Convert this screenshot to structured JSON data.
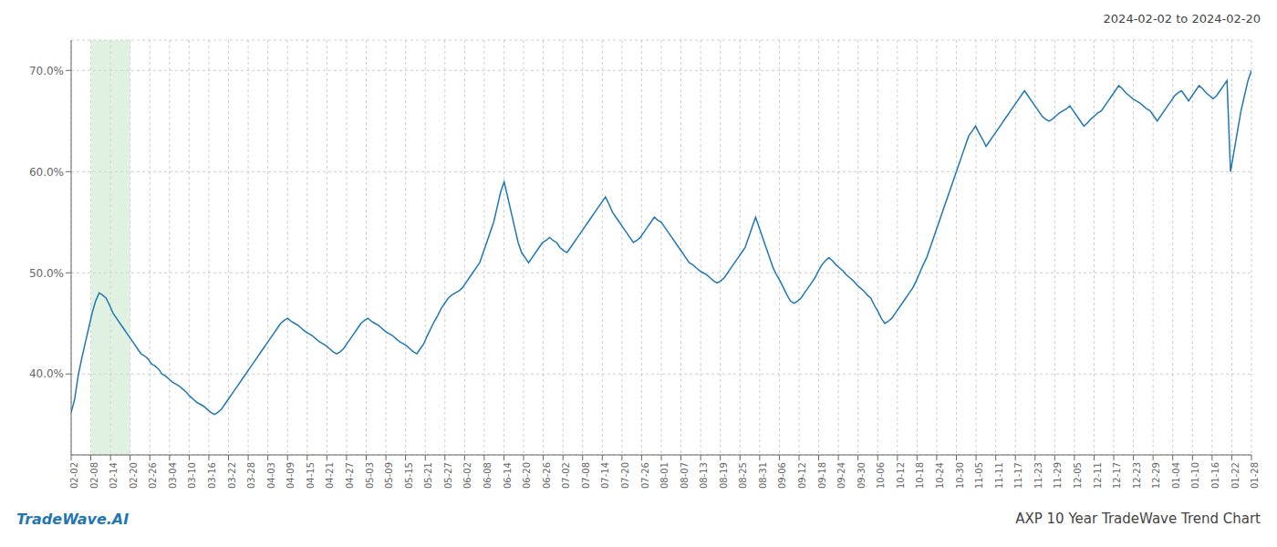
{
  "chart_data": {
    "type": "line",
    "title": "AXP 10 Year TradeWave Trend Chart",
    "subtitle": "2024-02-02 to 2024-02-20",
    "annotations": [
      {
        "text": "TradeWave.AI",
        "color": "#1f77b4"
      }
    ],
    "color": "#1f77b4",
    "grid": true,
    "xlim": [
      0,
      338
    ],
    "xticks": [
      {
        "value": 0,
        "label": "02-02"
      },
      {
        "value": 5.633,
        "label": "02-08"
      },
      {
        "value": 11.267,
        "label": "02-14"
      },
      {
        "value": 16.9,
        "label": "02-20"
      },
      {
        "value": 22.533,
        "label": "02-26"
      },
      {
        "value": 28.167,
        "label": "03-04"
      },
      {
        "value": 33.8,
        "label": "03-10"
      },
      {
        "value": 39.433,
        "label": "03-16"
      },
      {
        "value": 45.067,
        "label": "03-22"
      },
      {
        "value": 50.7,
        "label": "03-28"
      },
      {
        "value": 56.333,
        "label": "04-03"
      },
      {
        "value": 61.967,
        "label": "04-09"
      },
      {
        "value": 67.6,
        "label": "04-15"
      },
      {
        "value": 73.233,
        "label": "04-21"
      },
      {
        "value": 78.867,
        "label": "04-27"
      },
      {
        "value": 84.5,
        "label": "05-03"
      },
      {
        "value": 90.133,
        "label": "05-09"
      },
      {
        "value": 95.767,
        "label": "05-15"
      },
      {
        "value": 101.4,
        "label": "05-21"
      },
      {
        "value": 107.033,
        "label": "05-27"
      },
      {
        "value": 112.667,
        "label": "06-02"
      },
      {
        "value": 118.3,
        "label": "06-08"
      },
      {
        "value": 123.933,
        "label": "06-14"
      },
      {
        "value": 129.567,
        "label": "06-20"
      },
      {
        "value": 135.2,
        "label": "06-26"
      },
      {
        "value": 140.833,
        "label": "07-02"
      },
      {
        "value": 146.467,
        "label": "07-08"
      },
      {
        "value": 152.1,
        "label": "07-14"
      },
      {
        "value": 157.733,
        "label": "07-20"
      },
      {
        "value": 163.367,
        "label": "07-26"
      },
      {
        "value": 169,
        "label": "08-01"
      },
      {
        "value": 174.633,
        "label": "08-07"
      },
      {
        "value": 180.267,
        "label": "08-13"
      },
      {
        "value": 185.9,
        "label": "08-19"
      },
      {
        "value": 191.533,
        "label": "08-25"
      },
      {
        "value": 197.167,
        "label": "08-31"
      },
      {
        "value": 202.8,
        "label": "09-06"
      },
      {
        "value": 208.433,
        "label": "09-12"
      },
      {
        "value": 214.067,
        "label": "09-18"
      },
      {
        "value": 219.7,
        "label": "09-24"
      },
      {
        "value": 225.333,
        "label": "09-30"
      },
      {
        "value": 230.967,
        "label": "10-06"
      },
      {
        "value": 236.6,
        "label": "10-12"
      },
      {
        "value": 242.233,
        "label": "10-18"
      },
      {
        "value": 247.867,
        "label": "10-24"
      },
      {
        "value": 253.5,
        "label": "10-30"
      },
      {
        "value": 259.133,
        "label": "11-05"
      },
      {
        "value": 264.767,
        "label": "11-11"
      },
      {
        "value": 270.4,
        "label": "11-17"
      },
      {
        "value": 276.033,
        "label": "11-23"
      },
      {
        "value": 281.667,
        "label": "11-29"
      },
      {
        "value": 287.3,
        "label": "12-05"
      },
      {
        "value": 292.933,
        "label": "12-11"
      },
      {
        "value": 298.567,
        "label": "12-17"
      },
      {
        "value": 304.2,
        "label": "12-23"
      },
      {
        "value": 309.833,
        "label": "12-29"
      },
      {
        "value": 315.467,
        "label": "01-04"
      },
      {
        "value": 321.1,
        "label": "01-10"
      },
      {
        "value": 326.733,
        "label": "01-16"
      },
      {
        "value": 332.367,
        "label": "01-22"
      },
      {
        "value": 338,
        "label": "01-28"
      }
    ],
    "ylim": [
      32,
      73
    ],
    "yticks": [
      {
        "value": 40,
        "label": "40.0%"
      },
      {
        "value": 50,
        "label": "50.0%"
      },
      {
        "value": 60,
        "label": "60.0%"
      },
      {
        "value": 70,
        "label": "70.0%"
      }
    ],
    "highlight": {
      "from": "02-08",
      "to": "02-20",
      "color": "#c8e6c9"
    },
    "values": [
      36.2,
      37.5,
      39.8,
      41.5,
      43.0,
      44.5,
      46.0,
      47.2,
      48.0,
      47.8,
      47.5,
      46.8,
      46.0,
      45.5,
      45.0,
      44.5,
      44.0,
      43.5,
      43.0,
      42.5,
      42.0,
      41.8,
      41.5,
      41.0,
      40.8,
      40.5,
      40.0,
      39.8,
      39.5,
      39.2,
      39.0,
      38.8,
      38.5,
      38.2,
      37.8,
      37.5,
      37.2,
      37.0,
      36.8,
      36.5,
      36.2,
      36.0,
      36.2,
      36.5,
      37.0,
      37.5,
      38.0,
      38.5,
      39.0,
      39.5,
      40.0,
      40.5,
      41.0,
      41.5,
      42.0,
      42.5,
      43.0,
      43.5,
      44.0,
      44.5,
      45.0,
      45.3,
      45.5,
      45.2,
      45.0,
      44.8,
      44.5,
      44.2,
      44.0,
      43.8,
      43.5,
      43.2,
      43.0,
      42.8,
      42.5,
      42.2,
      42.0,
      42.2,
      42.5,
      43.0,
      43.5,
      44.0,
      44.5,
      45.0,
      45.3,
      45.5,
      45.2,
      45.0,
      44.8,
      44.5,
      44.2,
      44.0,
      43.8,
      43.5,
      43.2,
      43.0,
      42.8,
      42.5,
      42.2,
      42.0,
      42.5,
      43.0,
      43.8,
      44.5,
      45.2,
      45.8,
      46.5,
      47.0,
      47.5,
      47.8,
      48.0,
      48.2,
      48.5,
      49.0,
      49.5,
      50.0,
      50.5,
      51.0,
      52.0,
      53.0,
      54.0,
      55.0,
      56.5,
      58.0,
      59.0,
      57.5,
      56.0,
      54.5,
      53.0,
      52.0,
      51.5,
      51.0,
      51.5,
      52.0,
      52.5,
      53.0,
      53.2,
      53.5,
      53.2,
      53.0,
      52.5,
      52.2,
      52.0,
      52.5,
      53.0,
      53.5,
      54.0,
      54.5,
      55.0,
      55.5,
      56.0,
      56.5,
      57.0,
      57.5,
      56.8,
      56.0,
      55.5,
      55.0,
      54.5,
      54.0,
      53.5,
      53.0,
      53.2,
      53.5,
      54.0,
      54.5,
      55.0,
      55.5,
      55.2,
      55.0,
      54.5,
      54.0,
      53.5,
      53.0,
      52.5,
      52.0,
      51.5,
      51.0,
      50.8,
      50.5,
      50.2,
      50.0,
      49.8,
      49.5,
      49.2,
      49.0,
      49.2,
      49.5,
      50.0,
      50.5,
      51.0,
      51.5,
      52.0,
      52.5,
      53.5,
      54.5,
      55.5,
      54.5,
      53.5,
      52.5,
      51.5,
      50.5,
      49.8,
      49.2,
      48.5,
      47.8,
      47.2,
      47.0,
      47.2,
      47.5,
      48.0,
      48.5,
      49.0,
      49.5,
      50.2,
      50.8,
      51.2,
      51.5,
      51.2,
      50.8,
      50.5,
      50.2,
      49.8,
      49.5,
      49.2,
      48.8,
      48.5,
      48.2,
      47.8,
      47.5,
      46.8,
      46.2,
      45.5,
      45.0,
      45.2,
      45.5,
      46.0,
      46.5,
      47.0,
      47.5,
      48.0,
      48.5,
      49.2,
      50.0,
      50.8,
      51.5,
      52.5,
      53.5,
      54.5,
      55.5,
      56.5,
      57.5,
      58.5,
      59.5,
      60.5,
      61.5,
      62.5,
      63.5,
      64.0,
      64.5,
      63.8,
      63.2,
      62.5,
      63.0,
      63.5,
      64.0,
      64.5,
      65.0,
      65.5,
      66.0,
      66.5,
      67.0,
      67.5,
      68.0,
      67.5,
      67.0,
      66.5,
      66.0,
      65.5,
      65.2,
      65.0,
      65.2,
      65.5,
      65.8,
      66.0,
      66.2,
      66.5,
      66.0,
      65.5,
      65.0,
      64.5,
      64.8,
      65.2,
      65.5,
      65.8,
      66.0,
      66.5,
      67.0,
      67.5,
      68.0,
      68.5,
      68.2,
      67.8,
      67.5,
      67.2,
      67.0,
      66.8,
      66.5,
      66.2,
      66.0,
      65.5,
      65.0,
      65.5,
      66.0,
      66.5,
      67.0,
      67.5,
      67.8,
      68.0,
      67.5,
      67.0,
      67.5,
      68.0,
      68.5,
      68.2,
      67.8,
      67.5,
      67.2,
      67.5,
      68.0,
      68.5,
      69.0,
      60.0,
      62.0,
      64.0,
      66.0,
      67.5,
      69.0,
      70.0
    ]
  }
}
